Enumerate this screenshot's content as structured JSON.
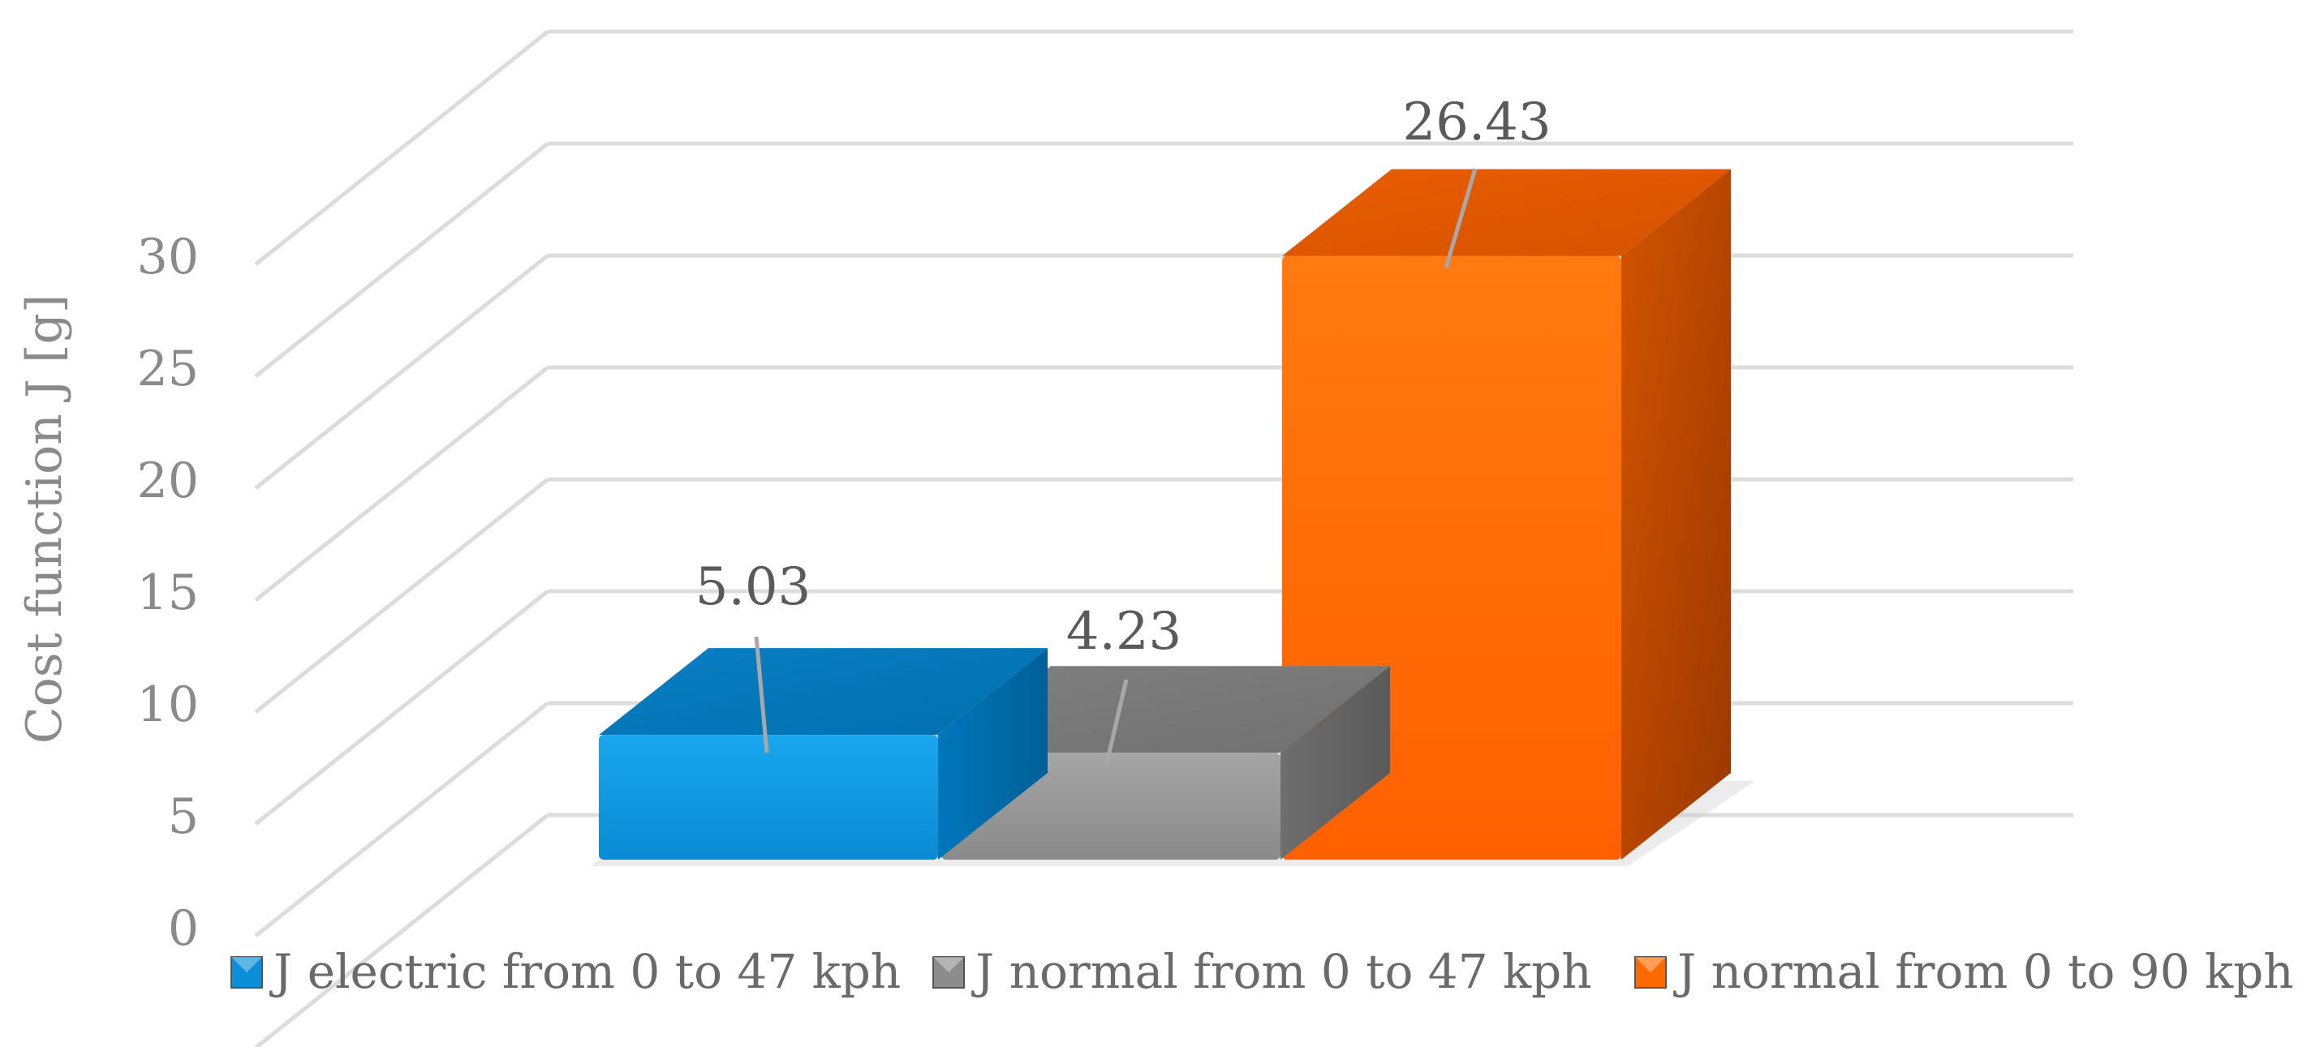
{
  "chart_data": {
    "type": "bar",
    "bar_style": "3d-clustered",
    "categories": [
      ""
    ],
    "series": [
      {
        "name": "J electric from 0 to 47 kph",
        "values": [
          5.03
        ],
        "color": "#0a8fd8"
      },
      {
        "name": "J normal from 0 to 47 kph",
        "values": [
          4.23
        ],
        "color": "#8c8c8c"
      },
      {
        "name": "J normal from 0 to 90 kph",
        "values": [
          26.43
        ],
        "color": "#ff6a00"
      }
    ],
    "data_labels": [
      "5.03",
      "4.23",
      "26.43"
    ],
    "title": "",
    "xlabel": "",
    "ylabel": "Cost function J [g]",
    "ylim": [
      0,
      35
    ],
    "yticks": [
      0,
      5,
      10,
      15,
      20,
      25,
      30
    ],
    "grid": true,
    "legend": "bottom"
  }
}
